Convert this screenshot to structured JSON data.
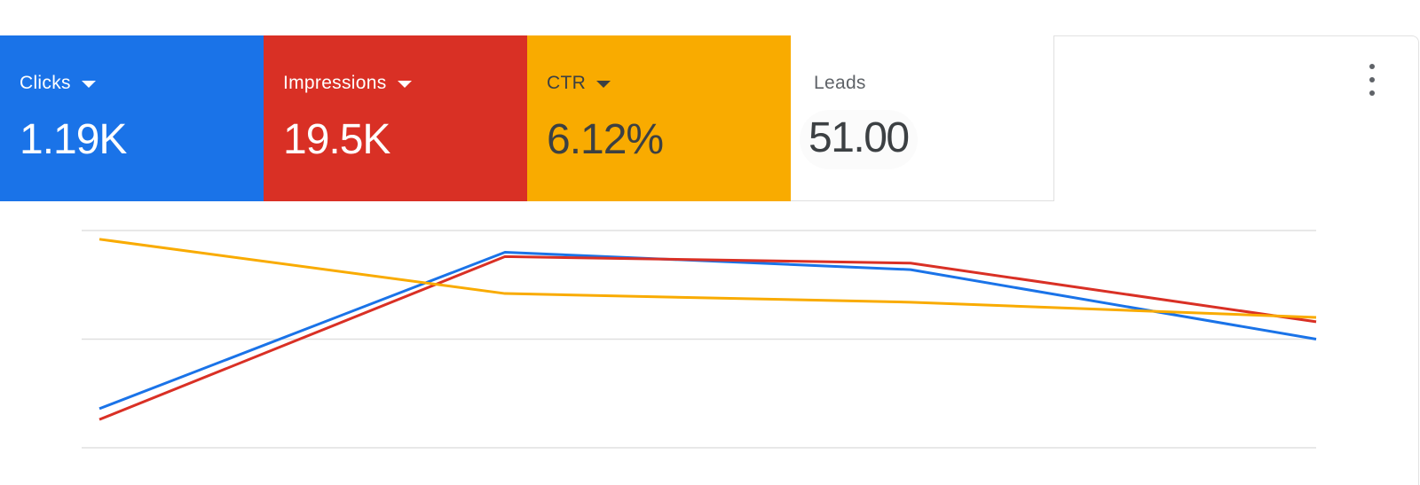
{
  "tiles": [
    {
      "label": "Clicks",
      "value": "1.19K",
      "color": "#1a73e8",
      "text_color": "#ffffff",
      "has_dropdown": true
    },
    {
      "label": "Impressions",
      "value": "19.5K",
      "color": "#d93025",
      "text_color": "#ffffff",
      "has_dropdown": true
    },
    {
      "label": "CTR",
      "value": "6.12%",
      "color": "#f9ab00",
      "text_color": "#3c4043",
      "has_dropdown": true
    },
    {
      "label": "Leads",
      "value": "51.00",
      "color": "#ffffff",
      "text_color": "#3c4043",
      "has_dropdown": false
    }
  ],
  "menu": {
    "icon": "more-vert-icon"
  },
  "chart_data": {
    "type": "line",
    "x": [
      1,
      2,
      3,
      4
    ],
    "ylim": [
      0,
      1
    ],
    "grid": true,
    "gridlines": 3,
    "series": [
      {
        "color": "#1a73e8",
        "values": [
          0.18,
          0.9,
          0.82,
          0.5
        ]
      },
      {
        "color": "#d93025",
        "values": [
          0.13,
          0.88,
          0.85,
          0.58
        ]
      },
      {
        "color": "#f9ab00",
        "values": [
          0.96,
          0.71,
          0.67,
          0.6
        ]
      }
    ]
  }
}
